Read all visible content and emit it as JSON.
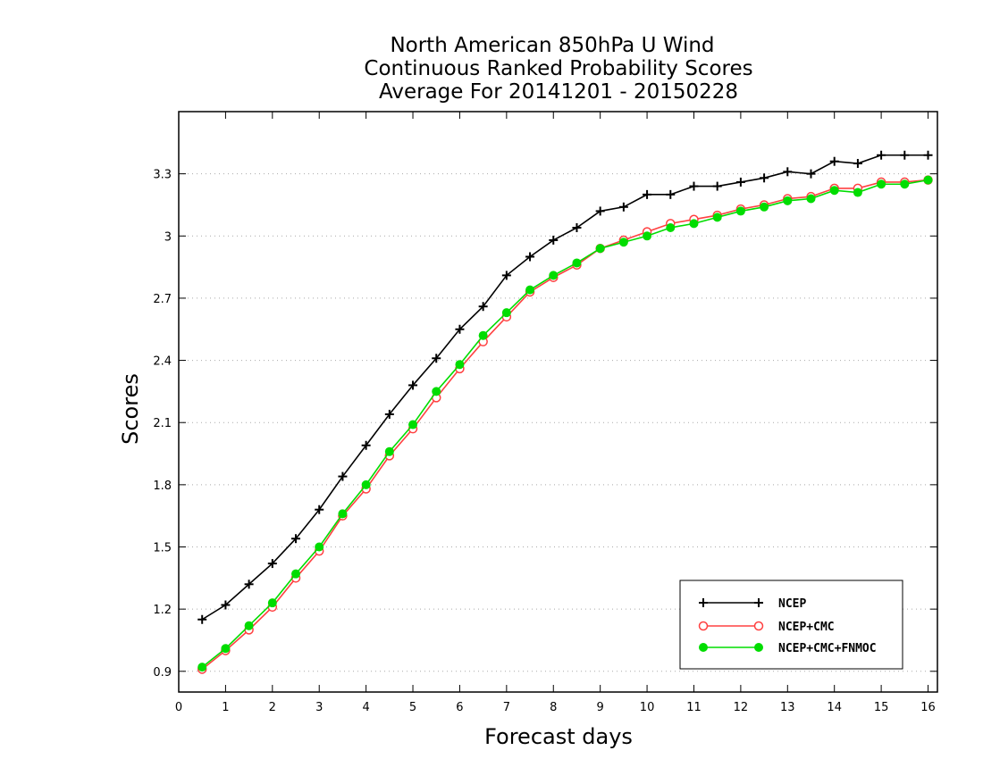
{
  "chart_data": {
    "type": "line",
    "title": [
      "North American 850hPa U Wind",
      "Continuous Ranked Probability Scores",
      "Average For 20141201 - 20150228"
    ],
    "xlabel": "Forecast days",
    "ylabel": "Scores",
    "xlim": [
      0,
      16.2
    ],
    "ylim": [
      0.8,
      3.6
    ],
    "xticks": [
      0,
      1,
      2,
      3,
      4,
      5,
      6,
      7,
      8,
      9,
      10,
      11,
      12,
      13,
      14,
      15,
      16
    ],
    "xtick_labels": [
      "0",
      "1",
      "2",
      "3",
      "4",
      "5",
      "6",
      "7",
      "8",
      "9",
      "10",
      "11",
      "12",
      "13",
      "14",
      "15",
      "16"
    ],
    "yticks": [
      0.9,
      1.2,
      1.5,
      1.8,
      2.1,
      2.4,
      2.7,
      3.0,
      3.3
    ],
    "ytick_labels": [
      "0.9",
      "1.2",
      "1.5",
      "1.8",
      "2.1",
      "2.4",
      "2.7",
      "3",
      "3.3"
    ],
    "grid": "horizontal dotted",
    "legend_position": "bottom-right",
    "x": [
      0.5,
      1,
      1.5,
      2,
      2.5,
      3,
      3.5,
      4,
      4.5,
      5,
      5.5,
      6,
      6.5,
      7,
      7.5,
      8,
      8.5,
      9,
      9.5,
      10,
      10.5,
      11,
      11.5,
      12,
      12.5,
      13,
      13.5,
      14,
      14.5,
      15,
      15.5,
      16
    ],
    "series": [
      {
        "name": "NCEP",
        "color": "#000000",
        "marker": "plus",
        "values": [
          1.15,
          1.22,
          1.32,
          1.42,
          1.54,
          1.68,
          1.84,
          1.99,
          2.14,
          2.28,
          2.41,
          2.55,
          2.66,
          2.81,
          2.9,
          2.98,
          3.04,
          3.12,
          3.14,
          3.2,
          3.2,
          3.24,
          3.24,
          3.26,
          3.28,
          3.31,
          3.3,
          3.36,
          3.35,
          3.39,
          3.39,
          3.39
        ]
      },
      {
        "name": "NCEP+CMC",
        "color": "#ff4040",
        "marker": "open-circle",
        "values": [
          0.91,
          1.0,
          1.1,
          1.21,
          1.35,
          1.48,
          1.65,
          1.78,
          1.94,
          2.07,
          2.22,
          2.36,
          2.49,
          2.61,
          2.73,
          2.8,
          2.86,
          2.94,
          2.98,
          3.02,
          3.06,
          3.08,
          3.1,
          3.13,
          3.15,
          3.18,
          3.19,
          3.23,
          3.23,
          3.26,
          3.26,
          3.27
        ]
      },
      {
        "name": "NCEP+CMC+FNMOC",
        "color": "#00dd00",
        "marker": "filled-circle",
        "values": [
          0.92,
          1.01,
          1.12,
          1.23,
          1.37,
          1.5,
          1.66,
          1.8,
          1.96,
          2.09,
          2.25,
          2.38,
          2.52,
          2.63,
          2.74,
          2.81,
          2.87,
          2.94,
          2.97,
          3.0,
          3.04,
          3.06,
          3.09,
          3.12,
          3.14,
          3.17,
          3.18,
          3.22,
          3.21,
          3.25,
          3.25,
          3.27
        ]
      }
    ]
  }
}
